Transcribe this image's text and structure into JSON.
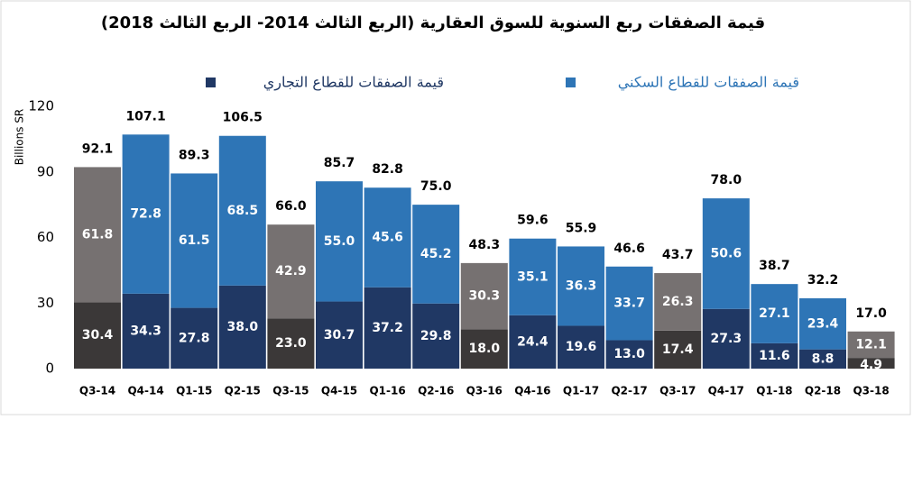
{
  "chart_data": {
    "type": "stacked_bar",
    "title": "قيمة الصفقات ربع السنوية للسوق العقارية (الربع الثالث 2014- الربع الثالث 2018)",
    "y_label": "Billions SR",
    "categories": [
      "Q3-14",
      "Q4-14",
      "Q1-15",
      "Q2-15",
      "Q3-15",
      "Q4-15",
      "Q1-16",
      "Q2-16",
      "Q3-16",
      "Q4-16",
      "Q1-17",
      "Q2-17",
      "Q3-17",
      "Q4-17",
      "Q1-18",
      "Q2-18",
      "Q3-18"
    ],
    "series": [
      {
        "name": "قيمة الصفقات للقطاع التجاري",
        "color": "#203864",
        "highlight_color": "#3b3838",
        "values": [
          30.4,
          34.3,
          27.8,
          38.0,
          23.0,
          30.7,
          37.2,
          29.8,
          18.0,
          24.4,
          19.6,
          13.0,
          17.4,
          27.3,
          11.6,
          8.8,
          4.9
        ],
        "value_labels": [
          "30.4",
          "34.3",
          "27.8",
          "38.0",
          "23.0",
          "30.7",
          "37.2",
          "29.8",
          "18.0",
          "24.4",
          "19.6",
          "13.0",
          "17.4",
          "27.3",
          "11.6",
          "8.8",
          "4.9"
        ]
      },
      {
        "name": "قيمة الصفقات للقطاع السكني",
        "color": "#2e75b6",
        "highlight_color": "#767171",
        "values": [
          61.8,
          72.8,
          61.5,
          68.5,
          42.9,
          55.0,
          45.6,
          45.2,
          30.3,
          35.1,
          36.3,
          33.7,
          26.3,
          50.6,
          27.1,
          23.4,
          12.1
        ],
        "value_labels": [
          "61.8",
          "72.8",
          "61.5",
          "68.5",
          "42.9",
          "55.0",
          "45.6",
          "45.2",
          "30.3",
          "35.1",
          "36.3",
          "33.7",
          "26.3",
          "50.6",
          "27.1",
          "23.4",
          "12.1"
        ]
      }
    ],
    "highlighted": [
      "Q3-14",
      "Q3-15",
      "Q3-16",
      "Q3-17",
      "Q3-18"
    ],
    "totals": [
      92.1,
      107.1,
      89.3,
      106.5,
      66.0,
      85.7,
      82.8,
      75.0,
      48.3,
      59.6,
      55.9,
      46.6,
      43.7,
      78.0,
      38.7,
      32.2,
      17.0
    ],
    "total_labels": [
      "92.1",
      "107.1",
      "89.3",
      "106.5",
      "66.0",
      "85.7",
      "82.8",
      "75.0",
      "48.3",
      "59.6",
      "55.9",
      "46.6",
      "43.7",
      "78.0",
      "38.7",
      "32.2",
      "17.0"
    ],
    "ylim": [
      0,
      120
    ],
    "yticks": [
      0,
      30,
      60,
      90,
      120
    ],
    "grid": false
  }
}
